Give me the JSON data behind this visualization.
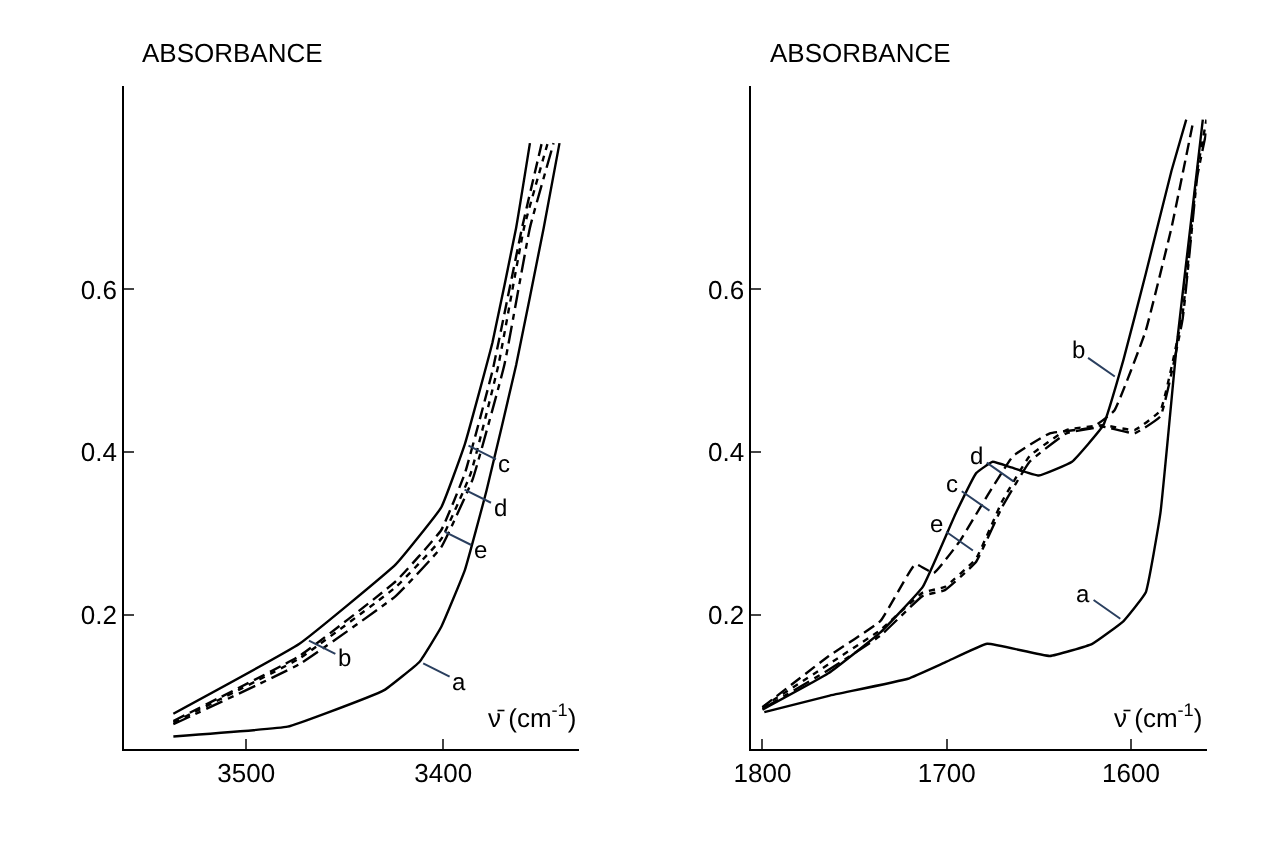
{
  "chart_data": [
    {
      "type": "line",
      "ylabel": "ABSORBANCE",
      "xlabel": "ν̄ (cm$^{-1}$)",
      "xlim": [
        3562,
        3331
      ],
      "xticks": [
        3500,
        3400
      ],
      "ylim": [
        0.035,
        0.85
      ],
      "yticks": [
        0.2,
        0.4,
        0.6
      ],
      "marker": "none",
      "series": [
        {
          "color": "#000000",
          "line_style": "solid",
          "x": [
            3537,
            3479,
            3459,
            3430,
            3412,
            3401,
            3389,
            3378,
            3363,
            3349,
            3341
          ],
          "values": [
            0.05,
            0.062,
            0.079,
            0.107,
            0.142,
            0.185,
            0.255,
            0.353,
            0.507,
            0.676,
            0.78
          ]
        },
        {
          "color": "#000000",
          "line_style": "solid",
          "x": [
            3537,
            3473,
            3424,
            3401,
            3389,
            3375,
            3363,
            3356
          ],
          "values": [
            0.078,
            0.164,
            0.262,
            0.332,
            0.41,
            0.535,
            0.676,
            0.78
          ]
        },
        {
          "color": "#000000",
          "line_style": "dashed",
          "x": [
            3537,
            3473,
            3424,
            3401,
            3389,
            3375,
            3360,
            3350
          ],
          "values": [
            0.069,
            0.149,
            0.241,
            0.304,
            0.374,
            0.5,
            0.676,
            0.78
          ]
        },
        {
          "color": "#000000",
          "line_style": "dotted",
          "x": [
            3537,
            3473,
            3424,
            3401,
            3386,
            3372,
            3359,
            3347
          ],
          "values": [
            0.067,
            0.146,
            0.234,
            0.293,
            0.374,
            0.507,
            0.676,
            0.78
          ]
        },
        {
          "color": "#000000",
          "line_style": "dashdot",
          "x": [
            3537,
            3473,
            3424,
            3401,
            3385,
            3369,
            3356,
            3344
          ],
          "values": [
            0.065,
            0.139,
            0.223,
            0.283,
            0.367,
            0.507,
            0.676,
            0.78
          ]
        }
      ],
      "annotations": [
        {
          "text": "c",
          "x": 3389,
          "y": 0.41
        },
        {
          "text": "d",
          "x": 3391,
          "y": 0.356
        },
        {
          "text": "e",
          "x": 3401,
          "y": 0.304
        },
        {
          "text": "b",
          "x": 3470,
          "y": 0.17
        },
        {
          "text": "a",
          "x": 3412,
          "y": 0.142
        }
      ]
    },
    {
      "type": "line",
      "ylabel": "ABSORBANCE",
      "xlabel": "ν̄ (cm$^{-1}$)",
      "xlim": [
        1806,
        1559
      ],
      "xticks": [
        1800,
        1700,
        1600
      ],
      "ylim": [
        0.035,
        0.85
      ],
      "yticks": [
        0.2,
        0.4,
        0.6
      ],
      "marker": "none",
      "series": [
        {
          "color": "#000000",
          "line_style": "solid",
          "x": [
            1799,
            1764,
            1721,
            1700,
            1678,
            1644,
            1621,
            1604,
            1592,
            1584,
            1575,
            1566,
            1561
          ],
          "values": [
            0.08,
            0.1,
            0.121,
            0.142,
            0.164,
            0.149,
            0.164,
            0.192,
            0.227,
            0.325,
            0.535,
            0.711,
            0.809
          ]
        },
        {
          "color": "#000000",
          "line_style": "solid",
          "x": [
            1800,
            1764,
            1736,
            1713,
            1695,
            1684,
            1675,
            1665,
            1650,
            1632,
            1615,
            1604,
            1592,
            1578,
            1570
          ],
          "values": [
            0.083,
            0.128,
            0.178,
            0.234,
            0.325,
            0.374,
            0.388,
            0.381,
            0.371,
            0.388,
            0.433,
            0.514,
            0.619,
            0.746,
            0.809
          ]
        },
        {
          "color": "#000000",
          "line_style": "dashed",
          "x": [
            1800,
            1764,
            1736,
            1717,
            1707,
            1693,
            1678,
            1664,
            1644,
            1621,
            1609,
            1592,
            1578,
            1566
          ],
          "values": [
            0.086,
            0.149,
            0.192,
            0.262,
            0.251,
            0.29,
            0.346,
            0.395,
            0.423,
            0.43,
            0.451,
            0.549,
            0.676,
            0.809
          ]
        },
        {
          "color": "#000000",
          "line_style": "dotted",
          "x": [
            1800,
            1764,
            1736,
            1713,
            1701,
            1684,
            1670,
            1655,
            1635,
            1615,
            1598,
            1584,
            1572,
            1564,
            1559
          ],
          "values": [
            0.086,
            0.139,
            0.181,
            0.227,
            0.234,
            0.269,
            0.339,
            0.395,
            0.427,
            0.433,
            0.427,
            0.451,
            0.57,
            0.746,
            0.809
          ]
        },
        {
          "color": "#000000",
          "line_style": "dashdot",
          "x": [
            1800,
            1764,
            1736,
            1713,
            1701,
            1684,
            1670,
            1655,
            1635,
            1615,
            1598,
            1584,
            1572,
            1564,
            1559
          ],
          "values": [
            0.084,
            0.132,
            0.174,
            0.223,
            0.23,
            0.265,
            0.332,
            0.388,
            0.423,
            0.431,
            0.423,
            0.444,
            0.563,
            0.739,
            0.795
          ]
        }
      ],
      "annotations": [
        {
          "text": "d",
          "x": 1662,
          "y": 0.361
        },
        {
          "text": "c",
          "x": 1675,
          "y": 0.325
        },
        {
          "text": "e",
          "x": 1684,
          "y": 0.276
        },
        {
          "text": "b",
          "x": 1607,
          "y": 0.49
        },
        {
          "text": "a",
          "x": 1604,
          "y": 0.192
        }
      ]
    }
  ]
}
